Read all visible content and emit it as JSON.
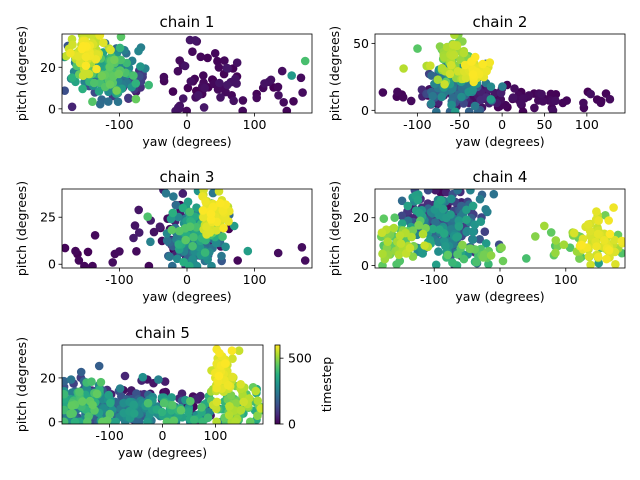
{
  "chart_data": {
    "type": "scatter",
    "colormap": "viridis",
    "xlabel": "yaw (degrees)",
    "ylabel": "pitch (degrees)",
    "colorbar": {
      "label": "timestep",
      "range": [
        0,
        600
      ],
      "ticks": [
        0,
        500
      ]
    },
    "panels": [
      {
        "title": "chain 1",
        "xlim": [
          -185,
          185
        ],
        "ylim": [
          -2,
          36
        ],
        "xticks": [
          -100,
          0,
          100
        ],
        "yticks": [
          0,
          20
        ],
        "clusters": [
          {
            "cx": -150,
            "cy": 28,
            "sx": 14,
            "sy": 5,
            "n": 70,
            "t": [
              520,
              600
            ]
          },
          {
            "cx": -120,
            "cy": 18,
            "sx": 22,
            "sy": 6,
            "n": 180,
            "t": [
              120,
              480
            ]
          },
          {
            "cx": -95,
            "cy": 12,
            "sx": 15,
            "sy": 5,
            "n": 40,
            "t": [
              30,
              150
            ]
          },
          {
            "cx": 20,
            "cy": 14,
            "sx": 35,
            "sy": 9,
            "n": 60,
            "t": [
              0,
              40
            ]
          },
          {
            "cx": 130,
            "cy": 9,
            "sx": 30,
            "sy": 5,
            "n": 16,
            "t": [
              0,
              30
            ]
          }
        ],
        "points": [
          [
            175,
            23,
            420
          ],
          [
            155,
            16,
            320
          ],
          [
            -170,
            1,
            60
          ],
          [
            -165,
            13,
            350
          ],
          [
            -170,
            15,
            380
          ]
        ]
      },
      {
        "title": "chain 2",
        "xlim": [
          -150,
          145
        ],
        "ylim": [
          -2,
          57
        ],
        "xticks": [
          -100,
          -50,
          0,
          50,
          100
        ],
        "yticks": [
          0,
          50
        ],
        "clusters": [
          {
            "cx": -60,
            "cy": 38,
            "sx": 14,
            "sy": 8,
            "n": 70,
            "t": [
              430,
              560
            ]
          },
          {
            "cx": -35,
            "cy": 30,
            "sx": 8,
            "sy": 5,
            "n": 40,
            "t": [
              560,
              600
            ]
          },
          {
            "cx": -55,
            "cy": 20,
            "sx": 20,
            "sy": 8,
            "n": 120,
            "t": [
              100,
              330
            ]
          },
          {
            "cx": -40,
            "cy": 12,
            "sx": 30,
            "sy": 5,
            "n": 60,
            "t": [
              0,
              70
            ]
          },
          {
            "cx": 30,
            "cy": 8,
            "sx": 35,
            "sy": 4,
            "n": 40,
            "t": [
              0,
              25
            ]
          },
          {
            "cx": -110,
            "cy": 10,
            "sx": 20,
            "sy": 2,
            "n": 8,
            "t": [
              0,
              20
            ]
          },
          {
            "cx": 110,
            "cy": 7,
            "sx": 15,
            "sy": 3,
            "n": 8,
            "t": [
              0,
              20
            ]
          }
        ],
        "points": []
      },
      {
        "title": "chain 3",
        "xlim": [
          -185,
          185
        ],
        "ylim": [
          -2,
          40
        ],
        "xticks": [
          -100,
          0,
          100
        ],
        "yticks": [
          0,
          25
        ],
        "clusters": [
          {
            "cx": 40,
            "cy": 28,
            "sx": 10,
            "sy": 5,
            "n": 70,
            "t": [
              540,
              600
            ]
          },
          {
            "cx": 15,
            "cy": 18,
            "sx": 22,
            "sy": 8,
            "n": 120,
            "t": [
              200,
              450
            ]
          },
          {
            "cx": 10,
            "cy": 8,
            "sx": 25,
            "sy": 5,
            "n": 60,
            "t": [
              120,
              300
            ]
          },
          {
            "cx": 0,
            "cy": 20,
            "sx": 30,
            "sy": 10,
            "n": 60,
            "t": [
              0,
              60
            ]
          },
          {
            "cx": -145,
            "cy": 8,
            "sx": 25,
            "sy": 5,
            "n": 8,
            "t": [
              0,
              20
            ]
          }
        ],
        "points": [
          [
            -165,
            7,
            10
          ],
          [
            -160,
            2,
            10
          ],
          [
            -110,
            1,
            20
          ],
          [
            135,
            6,
            20
          ],
          [
            170,
            9,
            20
          ],
          [
            175,
            2,
            20
          ],
          [
            90,
            7,
            330
          ],
          [
            75,
            2,
            10
          ]
        ]
      },
      {
        "title": "chain 4",
        "xlim": [
          -190,
          190
        ],
        "ylim": [
          -1,
          32
        ],
        "xticks": [
          -100,
          0,
          100
        ],
        "yticks": [
          0,
          20
        ],
        "clusters": [
          {
            "cx": -85,
            "cy": 16,
            "sx": 30,
            "sy": 7,
            "n": 200,
            "t": [
              80,
              360
            ]
          },
          {
            "cx": -100,
            "cy": 22,
            "sx": 18,
            "sy": 5,
            "n": 50,
            "t": [
              0,
              80
            ]
          },
          {
            "cx": -150,
            "cy": 10,
            "sx": 18,
            "sy": 5,
            "n": 60,
            "t": [
              430,
              560
            ]
          },
          {
            "cx": 155,
            "cy": 10,
            "sx": 18,
            "sy": 5,
            "n": 60,
            "t": [
              540,
              600
            ]
          },
          {
            "cx": 120,
            "cy": 8,
            "sx": 25,
            "sy": 4,
            "n": 30,
            "t": [
              420,
              520
            ]
          },
          {
            "cx": -40,
            "cy": 4,
            "sx": 25,
            "sy": 3,
            "n": 25,
            "t": [
              380,
              500
            ]
          }
        ],
        "points": [
          [
            -160,
            20,
            440
          ],
          [
            160,
            21,
            470
          ],
          [
            150,
            1,
            330
          ],
          [
            40,
            3,
            420
          ],
          [
            0,
            7,
            440
          ]
        ]
      },
      {
        "title": "chain 5",
        "xlim": [
          -190,
          190
        ],
        "ylim": [
          -1,
          35
        ],
        "xticks": [
          -100,
          0,
          100
        ],
        "yticks": [
          0,
          20
        ],
        "clusters": [
          {
            "cx": 115,
            "cy": 22,
            "sx": 12,
            "sy": 6,
            "n": 70,
            "t": [
              540,
              600
            ]
          },
          {
            "cx": 140,
            "cy": 8,
            "sx": 25,
            "sy": 5,
            "n": 80,
            "t": [
              350,
              560
            ]
          },
          {
            "cx": -145,
            "cy": 8,
            "sx": 25,
            "sy": 6,
            "n": 150,
            "t": [
              100,
              460
            ]
          },
          {
            "cx": -50,
            "cy": 6,
            "sx": 35,
            "sy": 4,
            "n": 100,
            "t": [
              150,
              350
            ]
          },
          {
            "cx": 40,
            "cy": 4,
            "sx": 30,
            "sy": 3,
            "n": 60,
            "t": [
              250,
              450
            ]
          },
          {
            "cx": -60,
            "cy": 10,
            "sx": 60,
            "sy": 5,
            "n": 40,
            "t": [
              0,
              80
            ]
          },
          {
            "cx": 70,
            "cy": 6,
            "sx": 20,
            "sy": 4,
            "n": 15,
            "t": [
              0,
              60
            ]
          }
        ],
        "points": []
      }
    ]
  }
}
